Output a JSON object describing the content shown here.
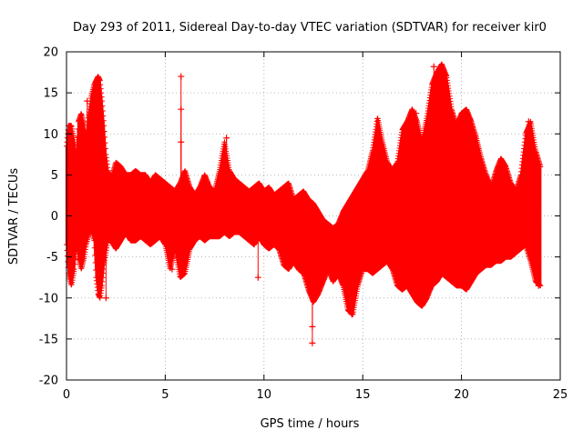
{
  "chart_data": {
    "type": "scatter",
    "marker": "+",
    "title": "Day 293 of 2011, Sidereal Day-to-day VTEC variation (SDTVAR) for receiver kir0",
    "xlabel": "GPS time / hours",
    "ylabel": "SDTVAR / TECUs",
    "xlim": [
      0,
      25
    ],
    "ylim": [
      -20,
      20
    ],
    "xticks": [
      0,
      5,
      10,
      15,
      20,
      25
    ],
    "yticks": [
      -20,
      -15,
      -10,
      -5,
      0,
      5,
      10,
      15,
      20
    ],
    "grid": true,
    "legend": "none",
    "series": [
      {
        "name": "SDTVAR",
        "color": "#ff0000",
        "envelope": {
          "x": [
            0.0,
            0.1,
            0.25,
            0.4,
            0.5,
            0.6,
            0.75,
            0.9,
            1.0,
            1.1,
            1.25,
            1.4,
            1.5,
            1.6,
            1.7,
            1.8,
            1.9,
            2.0,
            2.1,
            2.25,
            2.5,
            2.75,
            3.0,
            3.25,
            3.5,
            3.75,
            4.0,
            4.25,
            4.5,
            4.75,
            5.0,
            5.25,
            5.5,
            5.75,
            6.0,
            6.25,
            6.5,
            6.75,
            7.0,
            7.25,
            7.5,
            7.75,
            8.0,
            8.25,
            8.5,
            8.75,
            9.0,
            9.25,
            9.5,
            9.75,
            10.0,
            10.25,
            10.5,
            10.75,
            11.0,
            11.25,
            11.5,
            11.75,
            12.0,
            12.25,
            12.5,
            12.75,
            13.0,
            13.25,
            13.5,
            13.75,
            14.0,
            14.25,
            14.5,
            14.75,
            15.0,
            15.25,
            15.5,
            15.75,
            16.0,
            16.25,
            16.5,
            16.75,
            17.0,
            17.25,
            17.5,
            17.75,
            18.0,
            18.25,
            18.5,
            18.75,
            19.0,
            19.25,
            19.5,
            19.75,
            20.0,
            20.25,
            20.5,
            20.75,
            21.0,
            21.25,
            21.5,
            21.75,
            22.0,
            22.25,
            22.5,
            22.75,
            23.0,
            23.25,
            23.5,
            23.75,
            24.0
          ],
          "upper": [
            8.5,
            11.0,
            11.0,
            9.0,
            7.0,
            11.5,
            12.5,
            11.0,
            9.5,
            12.0,
            14.5,
            16.0,
            16.5,
            17.0,
            16.5,
            14.0,
            11.0,
            7.5,
            5.5,
            4.5,
            6.5,
            6.0,
            5.0,
            5.0,
            5.5,
            5.0,
            5.0,
            4.0,
            5.0,
            4.5,
            4.0,
            3.5,
            3.0,
            4.0,
            5.5,
            3.5,
            2.5,
            3.5,
            5.0,
            3.5,
            3.0,
            5.5,
            9.0,
            5.5,
            4.5,
            4.0,
            3.5,
            3.0,
            3.5,
            4.0,
            3.0,
            3.5,
            2.5,
            3.0,
            3.5,
            4.0,
            2.0,
            2.5,
            3.0,
            2.0,
            1.5,
            0.5,
            -0.5,
            -1.0,
            -1.5,
            -1.0,
            0.5,
            1.5,
            2.5,
            3.5,
            4.5,
            5.5,
            8.0,
            12.0,
            9.0,
            6.5,
            5.5,
            6.5,
            10.5,
            11.5,
            13.0,
            11.5,
            9.0,
            12.0,
            16.0,
            17.5,
            18.5,
            17.0,
            13.0,
            11.0,
            12.5,
            13.0,
            11.5,
            9.5,
            7.0,
            5.0,
            3.5,
            5.5,
            7.0,
            6.0,
            4.0,
            3.0,
            5.0,
            10.0,
            11.5,
            8.0,
            6.0
          ],
          "lower": [
            -3.5,
            -7.0,
            -8.5,
            -6.5,
            -3.5,
            -5.0,
            -6.5,
            -5.0,
            -3.5,
            -2.5,
            -1.5,
            -3.0,
            -7.5,
            -9.5,
            -10.0,
            -8.5,
            -6.0,
            -4.5,
            -3.0,
            -3.0,
            -4.0,
            -3.0,
            -2.0,
            -3.0,
            -3.0,
            -2.5,
            -3.0,
            -3.5,
            -3.0,
            -2.5,
            -3.5,
            -6.5,
            -4.0,
            -7.5,
            -7.0,
            -4.0,
            -3.0,
            -2.5,
            -3.0,
            -2.5,
            -2.5,
            -2.5,
            -2.0,
            -2.5,
            -2.0,
            -2.0,
            -2.5,
            -3.0,
            -3.5,
            -2.5,
            -3.5,
            -4.0,
            -3.5,
            -4.0,
            -6.0,
            -6.5,
            -5.5,
            -6.5,
            -7.0,
            -9.0,
            -10.5,
            -9.5,
            -8.0,
            -6.5,
            -8.0,
            -7.0,
            -8.5,
            -11.5,
            -12.0,
            -8.5,
            -6.5,
            -6.5,
            -7.0,
            -6.5,
            -6.0,
            -5.5,
            -6.5,
            -8.5,
            -9.0,
            -8.5,
            -9.5,
            -10.5,
            -11.0,
            -10.0,
            -8.5,
            -8.0,
            -7.0,
            -7.5,
            -8.0,
            -8.5,
            -8.5,
            -9.0,
            -8.0,
            -7.0,
            -6.5,
            -6.0,
            -6.0,
            -5.5,
            -5.5,
            -5.0,
            -5.0,
            -4.5,
            -4.0,
            -3.5,
            -5.5,
            -8.0,
            -8.5
          ]
        },
        "outliers": [
          {
            "x": 5.8,
            "y": 17.0
          },
          {
            "x": 5.8,
            "y": 13.0
          },
          {
            "x": 5.8,
            "y": 9.0
          },
          {
            "x": 5.35,
            "y": -6.5
          },
          {
            "x": 9.7,
            "y": -7.5
          },
          {
            "x": 9.7,
            "y": -3.0
          },
          {
            "x": 12.45,
            "y": -15.5
          },
          {
            "x": 12.45,
            "y": -13.5
          },
          {
            "x": 14.45,
            "y": -12.0
          },
          {
            "x": 1.05,
            "y": 14.0
          },
          {
            "x": 2.0,
            "y": -10.0
          },
          {
            "x": 8.1,
            "y": 9.5
          },
          {
            "x": 17.7,
            "y": 12.5
          },
          {
            "x": 18.6,
            "y": 18.2
          },
          {
            "x": 23.4,
            "y": 11.5
          },
          {
            "x": 23.9,
            "y": -8.5
          }
        ]
      }
    ]
  }
}
